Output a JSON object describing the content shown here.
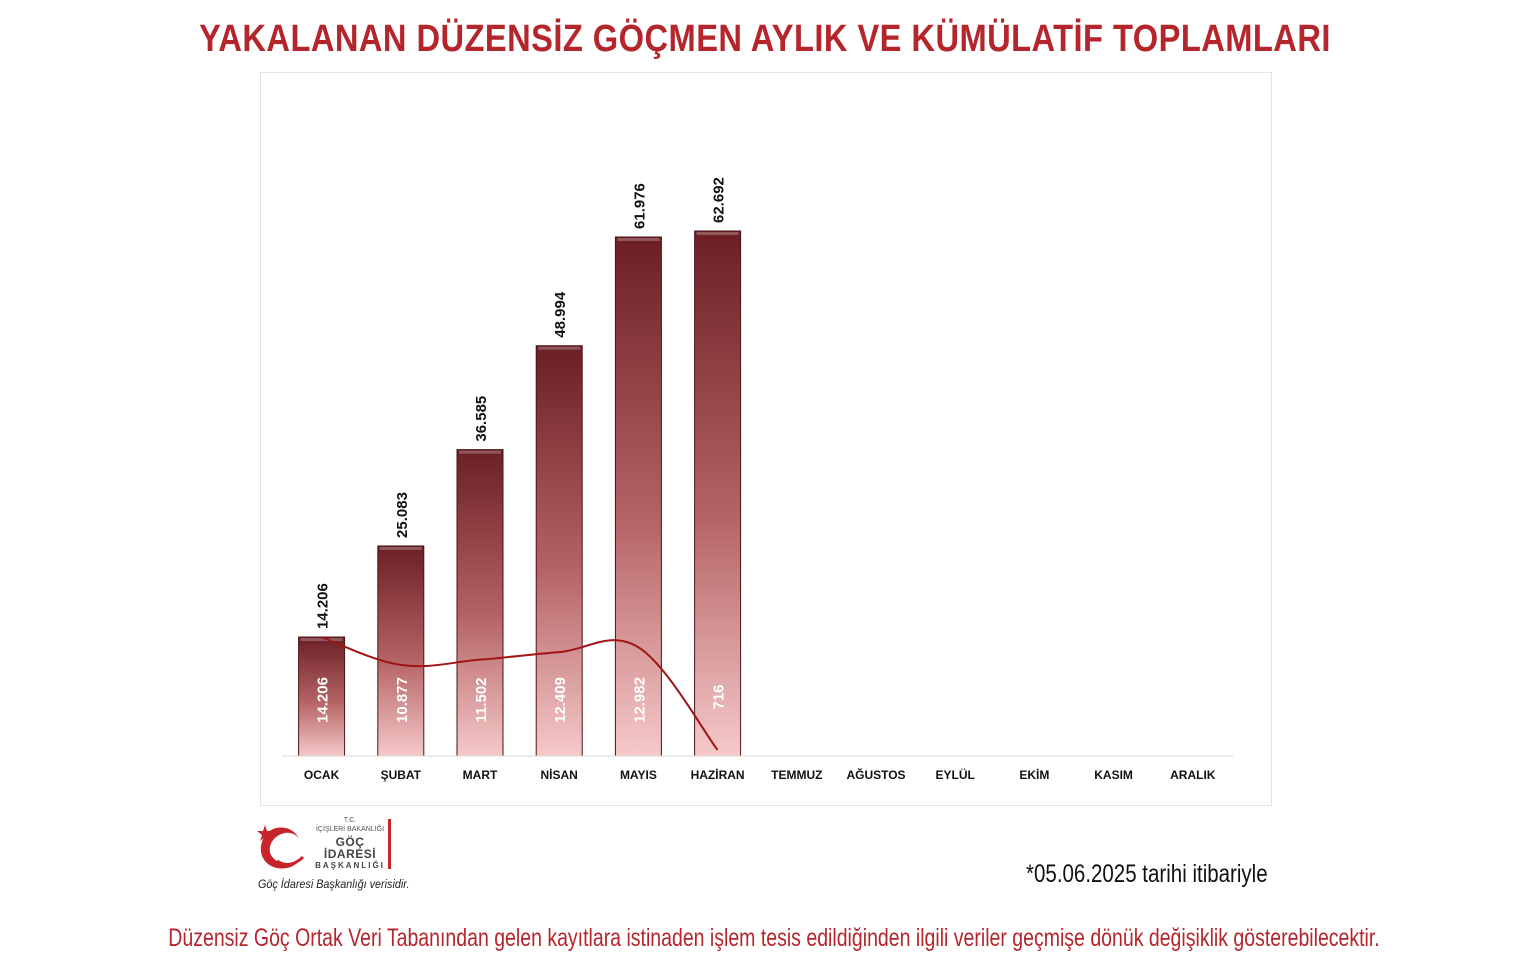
{
  "title": "YAKALANAN DÜZENSİZ GÖÇMEN AYLIK VE KÜMÜLATİF TOPLAMLARI",
  "chart_data": {
    "type": "bar",
    "categories": [
      "OCAK",
      "ŞUBAT",
      "MART",
      "NİSAN",
      "MAYIS",
      "HAZİRAN",
      "TEMMUZ",
      "AĞUSTOS",
      "EYLÜL",
      "EKİM",
      "KASIM",
      "ARALIK"
    ],
    "series": [
      {
        "type": "bar",
        "values": [
          14206,
          25083,
          36585,
          48994,
          61976,
          62692,
          null,
          null,
          null,
          null,
          null,
          null
        ],
        "labels": [
          "14.206",
          "25.083",
          "36.585",
          "48.994",
          "61.976",
          "62.692"
        ]
      },
      {
        "type": "line",
        "values": [
          14206,
          10877,
          11502,
          12409,
          12982,
          716,
          null,
          null,
          null,
          null,
          null,
          null
        ],
        "labels": [
          "14.206",
          "10.877",
          "11.502",
          "12.409",
          "12.982",
          "716"
        ]
      }
    ],
    "ylim": [
      0,
      70000
    ],
    "grid": false,
    "legend": "none",
    "colors": {
      "bar_top": "#6b1f24",
      "bar_bottom": "#f4c6c6",
      "line": "#a01516"
    }
  },
  "logo": {
    "tc": "T.C.",
    "ministry": "İÇİŞLERİ BAKANLIĞI",
    "name": "GÖÇ İDARESİ",
    "sub": "BAŞKANLIĞI"
  },
  "source": "Göç İdaresi Başkanlığı verisidir.",
  "as_of": "*05.06.2025 tarihi itibariyle",
  "footnote": "Düzensiz Göç Ortak Veri Tabanından gelen kayıtlara istinaden işlem tesis edildiğinden ilgili veriler geçmişe dönük değişiklik gösterebilecektir.",
  "brand_color": "#b5262c"
}
